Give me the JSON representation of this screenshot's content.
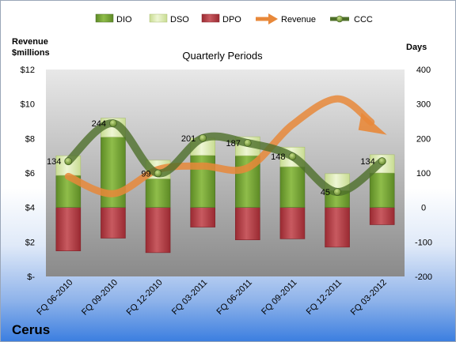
{
  "company": "Cerus",
  "chart_data": {
    "type": "bar",
    "title": "Quarterly Periods",
    "left_axis_title": [
      "Revenue",
      "$millions"
    ],
    "right_axis_title": "Days",
    "left_ticks": [
      "$-",
      "$2",
      "$4",
      "$6",
      "$8",
      "$10",
      "$12"
    ],
    "right_ticks": [
      "-200",
      "-100",
      "0",
      "100",
      "200",
      "300",
      "400"
    ],
    "left_range": [
      0,
      12
    ],
    "right_range": [
      -200,
      400
    ],
    "categories": [
      "FQ 06-2010",
      "FQ 09-2010",
      "FQ 12-2010",
      "FQ 03-2011",
      "FQ 06-2011",
      "FQ 09-2011",
      "FQ 12-2011",
      "FQ 03-2012"
    ],
    "legend": [
      "DIO",
      "DSO",
      "DPO",
      "Revenue",
      "CCC"
    ],
    "series": [
      {
        "name": "DIO",
        "axis": "right",
        "values": [
          93,
          204,
          83,
          151,
          150,
          118,
          49,
          100
        ],
        "color": "#7aa33a"
      },
      {
        "name": "DSO",
        "axis": "right",
        "values": [
          57,
          55,
          54,
          50,
          55,
          57,
          49,
          53
        ],
        "color": "#d6e8a8"
      },
      {
        "name": "DPO",
        "axis": "right",
        "values": [
          -126,
          -89,
          -131,
          -57,
          -94,
          -91,
          -115,
          -50
        ],
        "color": "#b9444a"
      },
      {
        "name": "Revenue",
        "axis": "left",
        "values": [
          5.8,
          4.8,
          6.2,
          6.4,
          6.3,
          8.8,
          10.3,
          null
        ],
        "color": "#e8883a"
      },
      {
        "name": "CCC",
        "axis": "right",
        "values": [
          134,
          244,
          99,
          201,
          187,
          148,
          45,
          134
        ],
        "color": "#4e6f2a"
      }
    ],
    "ccc_labels": [
      "134",
      "244",
      "99",
      "201",
      "187",
      "148",
      "45",
      "134"
    ],
    "grid": false,
    "legend_position": "top"
  }
}
